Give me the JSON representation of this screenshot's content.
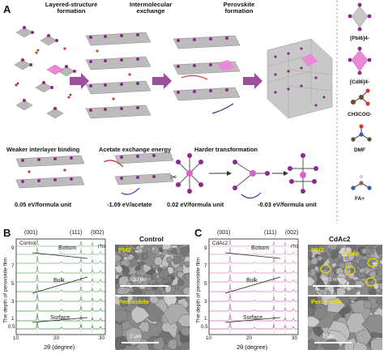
{
  "panel_a": {
    "letter": "A",
    "stage_titles": [
      "Layered-structure\nformation",
      "Intermolecular\nexchange",
      "Perovskite\nformation"
    ],
    "sub_titles": [
      "Weaker interlayer binding",
      "Acetate exchange energy",
      "Harder transformation"
    ],
    "energies": [
      "0.05 eV/formula unit",
      "-1.09 eV/acetate",
      "0.02 eV/formula unit",
      "-0.03 eV/formula unit"
    ],
    "legend": [
      "[PbI6]4-",
      "[CdI6]4-",
      "CH3COO-",
      "DMF",
      "FA+"
    ],
    "colors": {
      "pb": "#8c2a8c",
      "cd": "#d860c8",
      "arrow": "#9b4f9b",
      "octa": "#b8b8b8"
    }
  },
  "panel_b": {
    "letter": "B",
    "title": "Control",
    "peaks": [
      "(001)",
      "(111)",
      "(002)"
    ],
    "ito": "ITO",
    "depth_labels": [
      "Bottom",
      "Bulk",
      "Surface"
    ],
    "legend_text": "Control",
    "ylabel": "The depth of perovskite film",
    "xlabel": "2θ (degree)",
    "xticks": [
      "10",
      "20",
      "30"
    ],
    "yticks": [
      "9",
      "7",
      "5",
      "3",
      "1",
      "0.5"
    ],
    "sem_top_label": "PbI2",
    "sem_top_scale": "500 nm",
    "sem_bottom_label": "Perovskite",
    "sem_bottom_scale": "2 μm",
    "line_color": "#2e8b2e"
  },
  "panel_c": {
    "letter": "C",
    "title": "CdAc2",
    "peaks": [
      "(001)",
      "(111)",
      "(002)"
    ],
    "ito": "ITO",
    "depth_labels": [
      "Bottom",
      "Bulk",
      "Surface"
    ],
    "legend_text": "CdAc2",
    "ylabel": "The depth of perovskite film",
    "xlabel": "2θ (degree)",
    "xticks": [
      "10",
      "20",
      "30"
    ],
    "yticks": [
      "9",
      "7",
      "5",
      "3",
      "1",
      "0.5"
    ],
    "sem_top_label": "PbI2",
    "sem_top_hole": "hole",
    "sem_top_scale": "500 nm",
    "sem_bottom_label": "Perovskite",
    "sem_bottom_scale": "2 μm",
    "line_color": "#c85aa8"
  }
}
